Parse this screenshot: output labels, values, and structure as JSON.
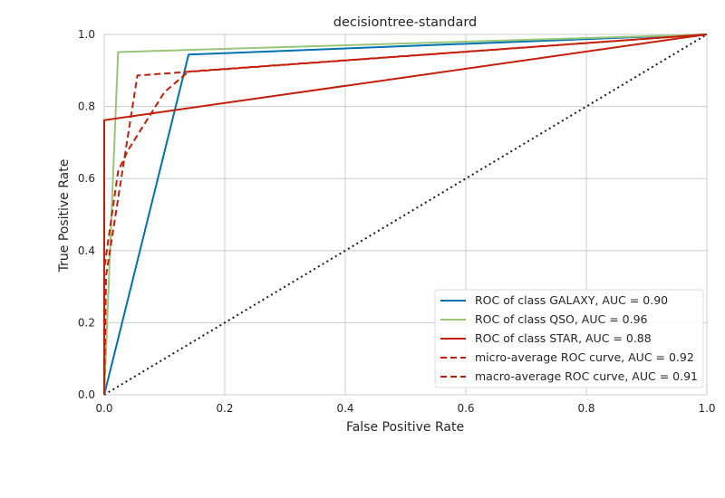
{
  "chart_data": {
    "type": "line",
    "title": "decisiontree-standard",
    "xlabel": "False Positive Rate",
    "ylabel": "True Positive Rate",
    "xlim": [
      0,
      1
    ],
    "ylim": [
      0,
      1
    ],
    "xticks": [
      "0.0",
      "0.2",
      "0.4",
      "0.6",
      "0.8",
      "1.0"
    ],
    "yticks": [
      "0.0",
      "0.2",
      "0.4",
      "0.6",
      "0.8",
      "1.0"
    ],
    "grid": true,
    "legend_position": "lower-right",
    "series": [
      {
        "name": "ROC of class GALAXY, AUC = 0.90",
        "color": "#0072b2",
        "style": "solid",
        "x": [
          0.0,
          0.14,
          1.0
        ],
        "y": [
          0.0,
          0.944,
          1.0
        ]
      },
      {
        "name": "ROC of class QSO, AUC = 0.96",
        "color": "#99c57a",
        "style": "solid",
        "x": [
          0.0,
          0.023,
          1.0
        ],
        "y": [
          0.0,
          0.951,
          1.0
        ]
      },
      {
        "name": "ROC of class STAR, AUC = 0.88",
        "color": "#c41e0a",
        "style": "solid",
        "x": [
          0.0,
          0.0,
          1.0
        ],
        "y": [
          0.0,
          0.762,
          1.0
        ]
      },
      {
        "name": "micro-average ROC curve, AUC = 0.92",
        "color": "#c41e0a",
        "style": "dashed",
        "x": [
          0.0,
          0.003,
          0.055,
          1.0
        ],
        "y": [
          0.0,
          0.33,
          0.886,
          1.0
        ]
      },
      {
        "name": "macro-average ROC curve, AUC = 0.91",
        "color": "#c41e0a",
        "style": "dashed",
        "x": [
          0.0,
          0.0,
          0.023,
          0.04,
          0.1,
          0.14,
          1.0
        ],
        "y": [
          0.0,
          0.35,
          0.62,
          0.68,
          0.84,
          0.897,
          1.0
        ]
      }
    ],
    "reference_line": {
      "x": [
        0,
        1
      ],
      "y": [
        0,
        1
      ],
      "color": "#1a1a1a",
      "style": "dotted"
    }
  }
}
